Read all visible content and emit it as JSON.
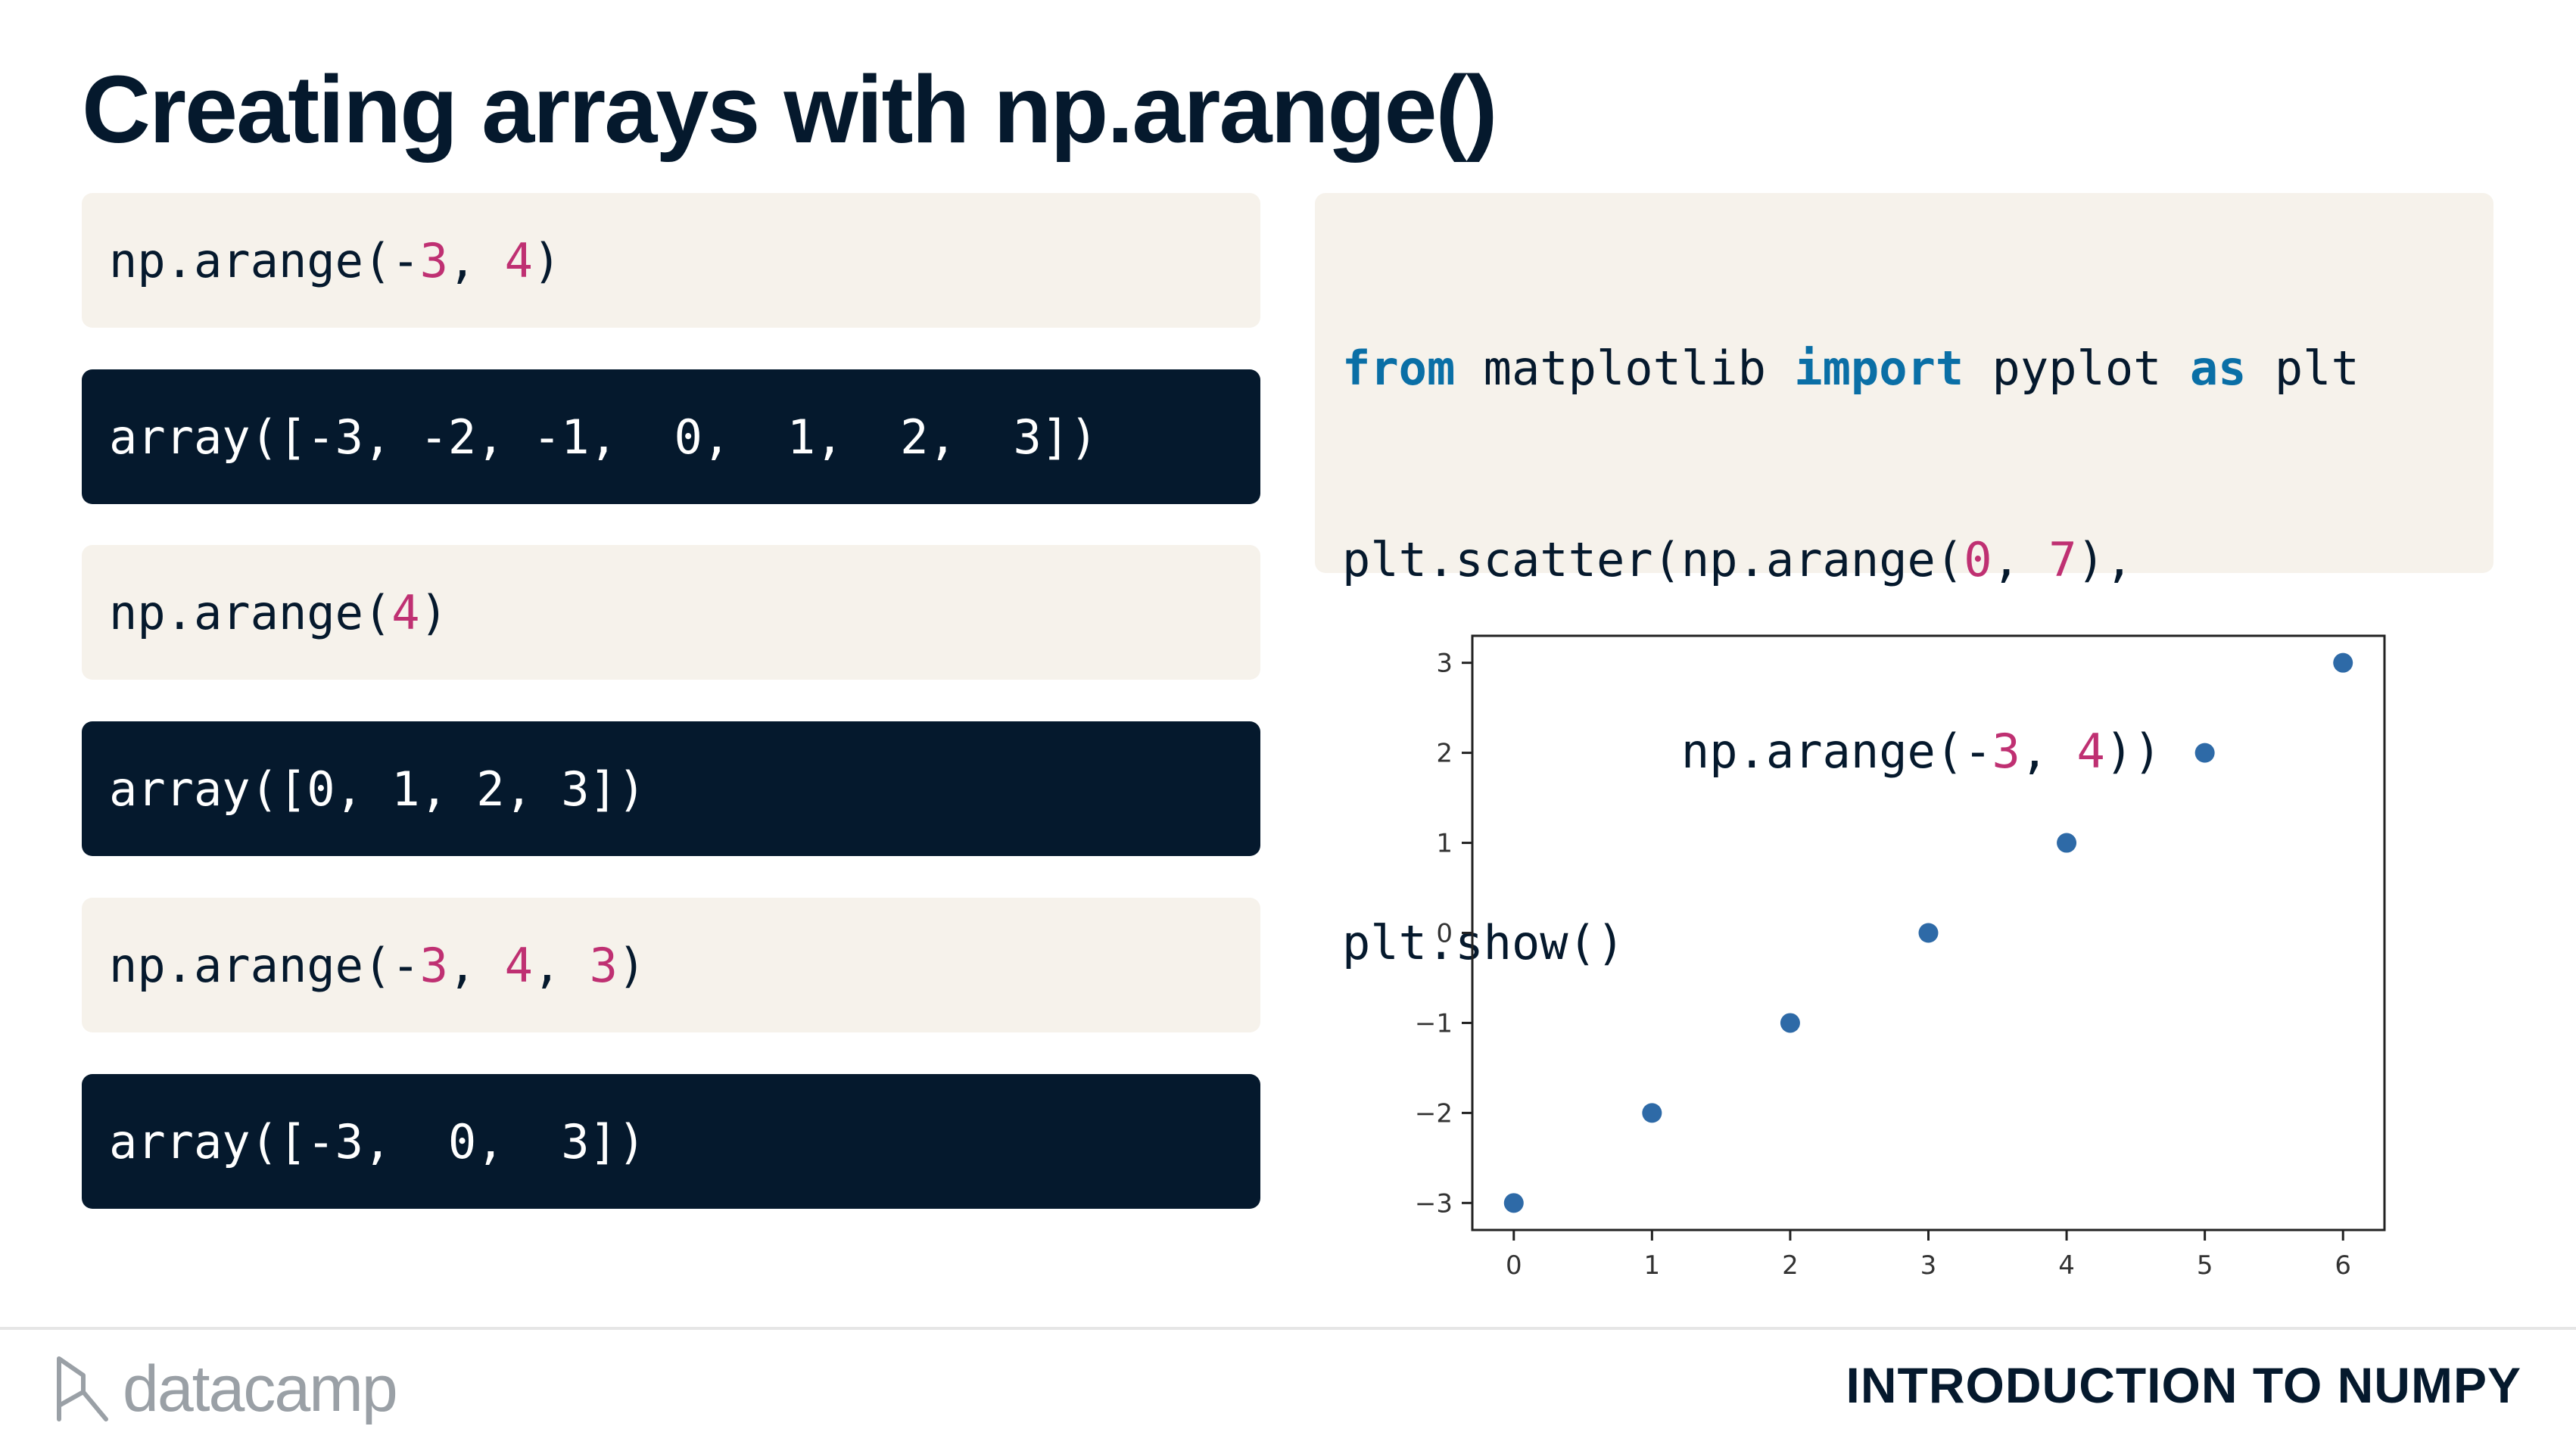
{
  "slide": {
    "title": "Creating arrays with np.arange()",
    "course": "INTRODUCTION TO NUMPY",
    "brand": "datacamp"
  },
  "examples": [
    {
      "input": [
        {
          "t": "np.arange(-",
          "c": "plain"
        },
        {
          "t": "3",
          "c": "num"
        },
        {
          "t": ", ",
          "c": "plain"
        },
        {
          "t": "4",
          "c": "num"
        },
        {
          "t": ")",
          "c": "plain"
        }
      ],
      "output": "array([-3, -2, -1,  0,  1,  2,  3])"
    },
    {
      "input": [
        {
          "t": "np.arange(",
          "c": "plain"
        },
        {
          "t": "4",
          "c": "num"
        },
        {
          "t": ")",
          "c": "plain"
        }
      ],
      "output": "array([0, 1, 2, 3])"
    },
    {
      "input": [
        {
          "t": "np.arange(-",
          "c": "plain"
        },
        {
          "t": "3",
          "c": "num"
        },
        {
          "t": ", ",
          "c": "plain"
        },
        {
          "t": "4",
          "c": "num"
        },
        {
          "t": ", ",
          "c": "plain"
        },
        {
          "t": "3",
          "c": "num"
        },
        {
          "t": ")",
          "c": "plain"
        }
      ],
      "output": "array([-3,  0,  3])"
    }
  ],
  "code_panel": [
    [
      {
        "t": "from",
        "c": "kw"
      },
      {
        "t": " matplotlib ",
        "c": "plain"
      },
      {
        "t": "import",
        "c": "kw"
      },
      {
        "t": " pyplot ",
        "c": "plain"
      },
      {
        "t": "as",
        "c": "kw"
      },
      {
        "t": " plt",
        "c": "plain"
      }
    ],
    [
      {
        "t": "plt.scatter(np.arange(",
        "c": "plain"
      },
      {
        "t": "0",
        "c": "num"
      },
      {
        "t": ", ",
        "c": "plain"
      },
      {
        "t": "7",
        "c": "num"
      },
      {
        "t": "),",
        "c": "plain"
      }
    ],
    [
      {
        "t": "            np.arange(-",
        "c": "plain"
      },
      {
        "t": "3",
        "c": "num"
      },
      {
        "t": ", ",
        "c": "plain"
      },
      {
        "t": "4",
        "c": "num"
      },
      {
        "t": "))",
        "c": "plain"
      }
    ],
    [
      {
        "t": "plt.show()",
        "c": "plain"
      }
    ]
  ],
  "colors": {
    "navy": "#05192d",
    "cream": "#f6f2eb",
    "number": "#bf3072",
    "keyword": "#0a6fa6",
    "marker": "#2e6aa7"
  },
  "chart_data": {
    "type": "scatter",
    "x": [
      0,
      1,
      2,
      3,
      4,
      5,
      6
    ],
    "y": [
      -3,
      -2,
      -1,
      0,
      1,
      2,
      3
    ],
    "xticks": [
      "0",
      "1",
      "2",
      "3",
      "4",
      "5",
      "6"
    ],
    "yticks": [
      "−3",
      "−2",
      "−1",
      "0",
      "1",
      "2",
      "3"
    ],
    "xlim": [
      -0.3,
      6.3
    ],
    "ylim": [
      -3.3,
      3.3
    ],
    "grid": false,
    "title": "",
    "xlabel": "",
    "ylabel": ""
  }
}
